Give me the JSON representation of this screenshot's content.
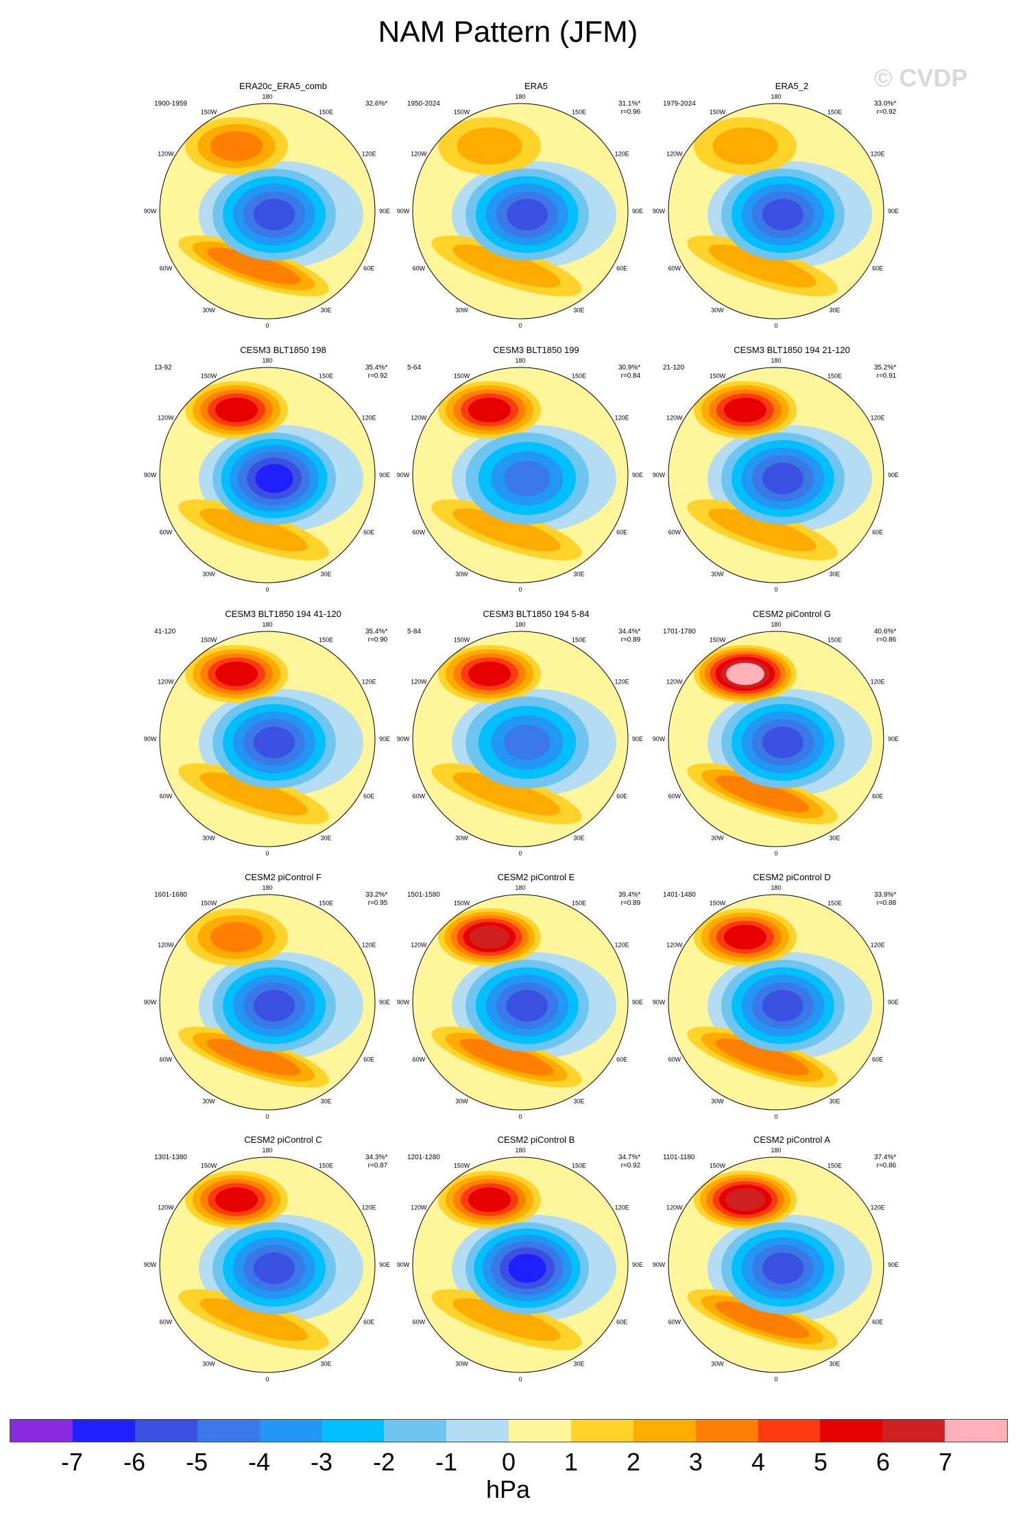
{
  "title": "NAM Pattern (JFM)",
  "watermark": "© CVDP",
  "longitude_labels": [
    "180",
    "150E",
    "120E",
    "90E",
    "60E",
    "30E",
    "0",
    "30W",
    "60W",
    "90W",
    "120W",
    "150W"
  ],
  "panels": [
    {
      "title": "ERA20c_ERA5_comb",
      "years": "1900-1959",
      "pct": "32.6%*",
      "r": "",
      "ridge": 1,
      "ridge_max": 3,
      "trough_min": -5,
      "atl": 3
    },
    {
      "title": "ERA5",
      "years": "1950-2024",
      "pct": "31.1%*",
      "r": "r=0.96",
      "ridge": 1,
      "ridge_max": 2,
      "trough_min": -5,
      "atl": 2
    },
    {
      "title": "ERA5_2",
      "years": "1979-2024",
      "pct": "33.0%*",
      "r": "r=0.92",
      "ridge": 1,
      "ridge_max": 2,
      "trough_min": -5,
      "atl": 2
    },
    {
      "title": "CESM3 BLT1850 198",
      "years": "13-92",
      "pct": "35.4%*",
      "r": "r=0.92",
      "ridge": 1,
      "ridge_max": 5,
      "trough_min": -6,
      "atl": 2
    },
    {
      "title": "CESM3 BLT1850 199",
      "years": "5-64",
      "pct": "30.9%*",
      "r": "r=0.84",
      "ridge": 1,
      "ridge_max": 5,
      "trough_min": -4,
      "atl": 2
    },
    {
      "title": "CESM3 BLT1850 194 21-120",
      "years": "21-120",
      "pct": "35.2%*",
      "r": "r=0.91",
      "ridge": 1,
      "ridge_max": 5,
      "trough_min": -5,
      "atl": 2
    },
    {
      "title": "CESM3 BLT1850 194 41-120",
      "years": "41-120",
      "pct": "35.4%*",
      "r": "r=0.90",
      "ridge": 1,
      "ridge_max": 5,
      "trough_min": -5,
      "atl": 2
    },
    {
      "title": "CESM3 BLT1850 194 5-84",
      "years": "5-84",
      "pct": "34.4%*",
      "r": "r=0.89",
      "ridge": 1,
      "ridge_max": 5,
      "trough_min": -4,
      "atl": 2
    },
    {
      "title": "CESM2 piControl G",
      "years": "1701-1780",
      "pct": "40.6%*",
      "r": "r=0.86",
      "ridge": 1,
      "ridge_max": 7,
      "trough_min": -5,
      "atl": 3
    },
    {
      "title": "CESM2 piControl F",
      "years": "1601-1680",
      "pct": "33.2%*",
      "r": "r=0.95",
      "ridge": 1,
      "ridge_max": 3,
      "trough_min": -5,
      "atl": 3
    },
    {
      "title": "CESM2 piControl E",
      "years": "1501-1580",
      "pct": "39.4%*",
      "r": "r=0.89",
      "ridge": 1,
      "ridge_max": 6,
      "trough_min": -5,
      "atl": 3
    },
    {
      "title": "CESM2 piControl D",
      "years": "1401-1480",
      "pct": "33.9%*",
      "r": "r=0.88",
      "ridge": 1,
      "ridge_max": 5,
      "trough_min": -5,
      "atl": 3
    },
    {
      "title": "CESM2 piControl C",
      "years": "1301-1380",
      "pct": "34.3%*",
      "r": "r=0.87",
      "ridge": 1,
      "ridge_max": 5,
      "trough_min": -5,
      "atl": 2
    },
    {
      "title": "CESM2 piControl B",
      "years": "1201-1280",
      "pct": "34.7%*",
      "r": "r=0.92",
      "ridge": 1,
      "ridge_max": 5,
      "trough_min": -6,
      "atl": 2
    },
    {
      "title": "CESM2 piControl A",
      "years": "1101-1180",
      "pct": "37.4%*",
      "r": "r=0.86",
      "ridge": 1,
      "ridge_max": 6,
      "trough_min": -5,
      "atl": 3
    }
  ],
  "colorbar": {
    "colors": [
      "#8a2be2",
      "#1f1fff",
      "#3a50e0",
      "#3a78e8",
      "#2196f3",
      "#00bfff",
      "#6ec6f0",
      "#b4dcf2",
      "#fff59a",
      "#ffd32a",
      "#ffab00",
      "#ff7f00",
      "#ff3a10",
      "#e60000",
      "#d01f1f",
      "#ffb0b8"
    ],
    "labels": [
      "-7",
      "-6",
      "-5",
      "-4",
      "-3",
      "-2",
      "-1",
      "0",
      "1",
      "2",
      "3",
      "4",
      "5",
      "6",
      "7"
    ],
    "units": "hPa"
  }
}
